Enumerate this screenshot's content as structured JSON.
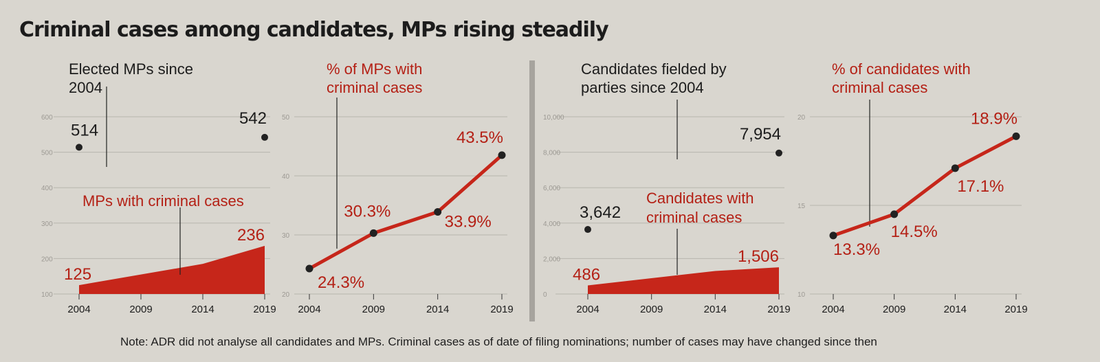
{
  "title": "Criminal cases among candidates, MPs rising steadily",
  "note": "Note: ADR did not analyse all candidates and MPs. Criminal cases as of date of filing nominations; number of cases may have changed since then",
  "chart_data": [
    {
      "type": "area",
      "title": "Elected MPs since 2004",
      "years": [
        "2004",
        "2009",
        "2014",
        "2019"
      ],
      "yticks": [
        "100",
        "200",
        "300",
        "400",
        "500",
        "600"
      ],
      "ylim": [
        100,
        600
      ],
      "colors": {
        "total": "#222222",
        "criminal": "#c6261a"
      },
      "total": {
        "name": "Elected MPs since 2004",
        "x": [
          "2004",
          "2019"
        ],
        "values": [
          514,
          542
        ],
        "labels": [
          "514",
          "542"
        ]
      },
      "criminal": {
        "name": "MPs with criminal cases",
        "x": [
          "2004",
          "2014",
          "2019"
        ],
        "values": [
          125,
          185,
          236
        ],
        "labels": [
          "125",
          "",
          "236"
        ]
      }
    },
    {
      "type": "line",
      "title": "% of MPs with criminal cases",
      "years": [
        "2004",
        "2009",
        "2014",
        "2019"
      ],
      "yticks": [
        "20",
        "30",
        "40",
        "50"
      ],
      "ylim": [
        20,
        50
      ],
      "color": "#c6261a",
      "values": [
        24.3,
        30.3,
        33.9,
        43.5
      ],
      "labels": [
        "24.3%",
        "30.3%",
        "33.9%",
        "43.5%"
      ]
    },
    {
      "type": "area",
      "title": "Candidates fielded by parties since 2004",
      "years": [
        "2004",
        "2009",
        "2014",
        "2019"
      ],
      "yticks": [
        "0",
        "2,000",
        "4,000",
        "6,000",
        "8,000",
        "10,000"
      ],
      "ylim": [
        0,
        10000
      ],
      "colors": {
        "total": "#222222",
        "criminal": "#c6261a"
      },
      "total": {
        "name": "Candidates fielded by parties since 2004",
        "x": [
          "2004",
          "2019"
        ],
        "values": [
          3642,
          7954
        ],
        "labels": [
          "3,642",
          "7,954"
        ]
      },
      "criminal": {
        "name": "Candidates with criminal cases",
        "x": [
          "2004",
          "2014",
          "2019"
        ],
        "values": [
          486,
          1300,
          1506
        ],
        "labels": [
          "486",
          "",
          "1,506"
        ]
      }
    },
    {
      "type": "line",
      "title": "% of candidates with criminal cases",
      "years": [
        "2004",
        "2009",
        "2014",
        "2019"
      ],
      "yticks": [
        "10",
        "15",
        "20"
      ],
      "ylim": [
        10,
        20
      ],
      "color": "#c6261a",
      "values": [
        13.3,
        14.5,
        17.1,
        18.9
      ],
      "labels": [
        "13.3%",
        "14.5%",
        "17.1%",
        "18.9%"
      ]
    }
  ]
}
